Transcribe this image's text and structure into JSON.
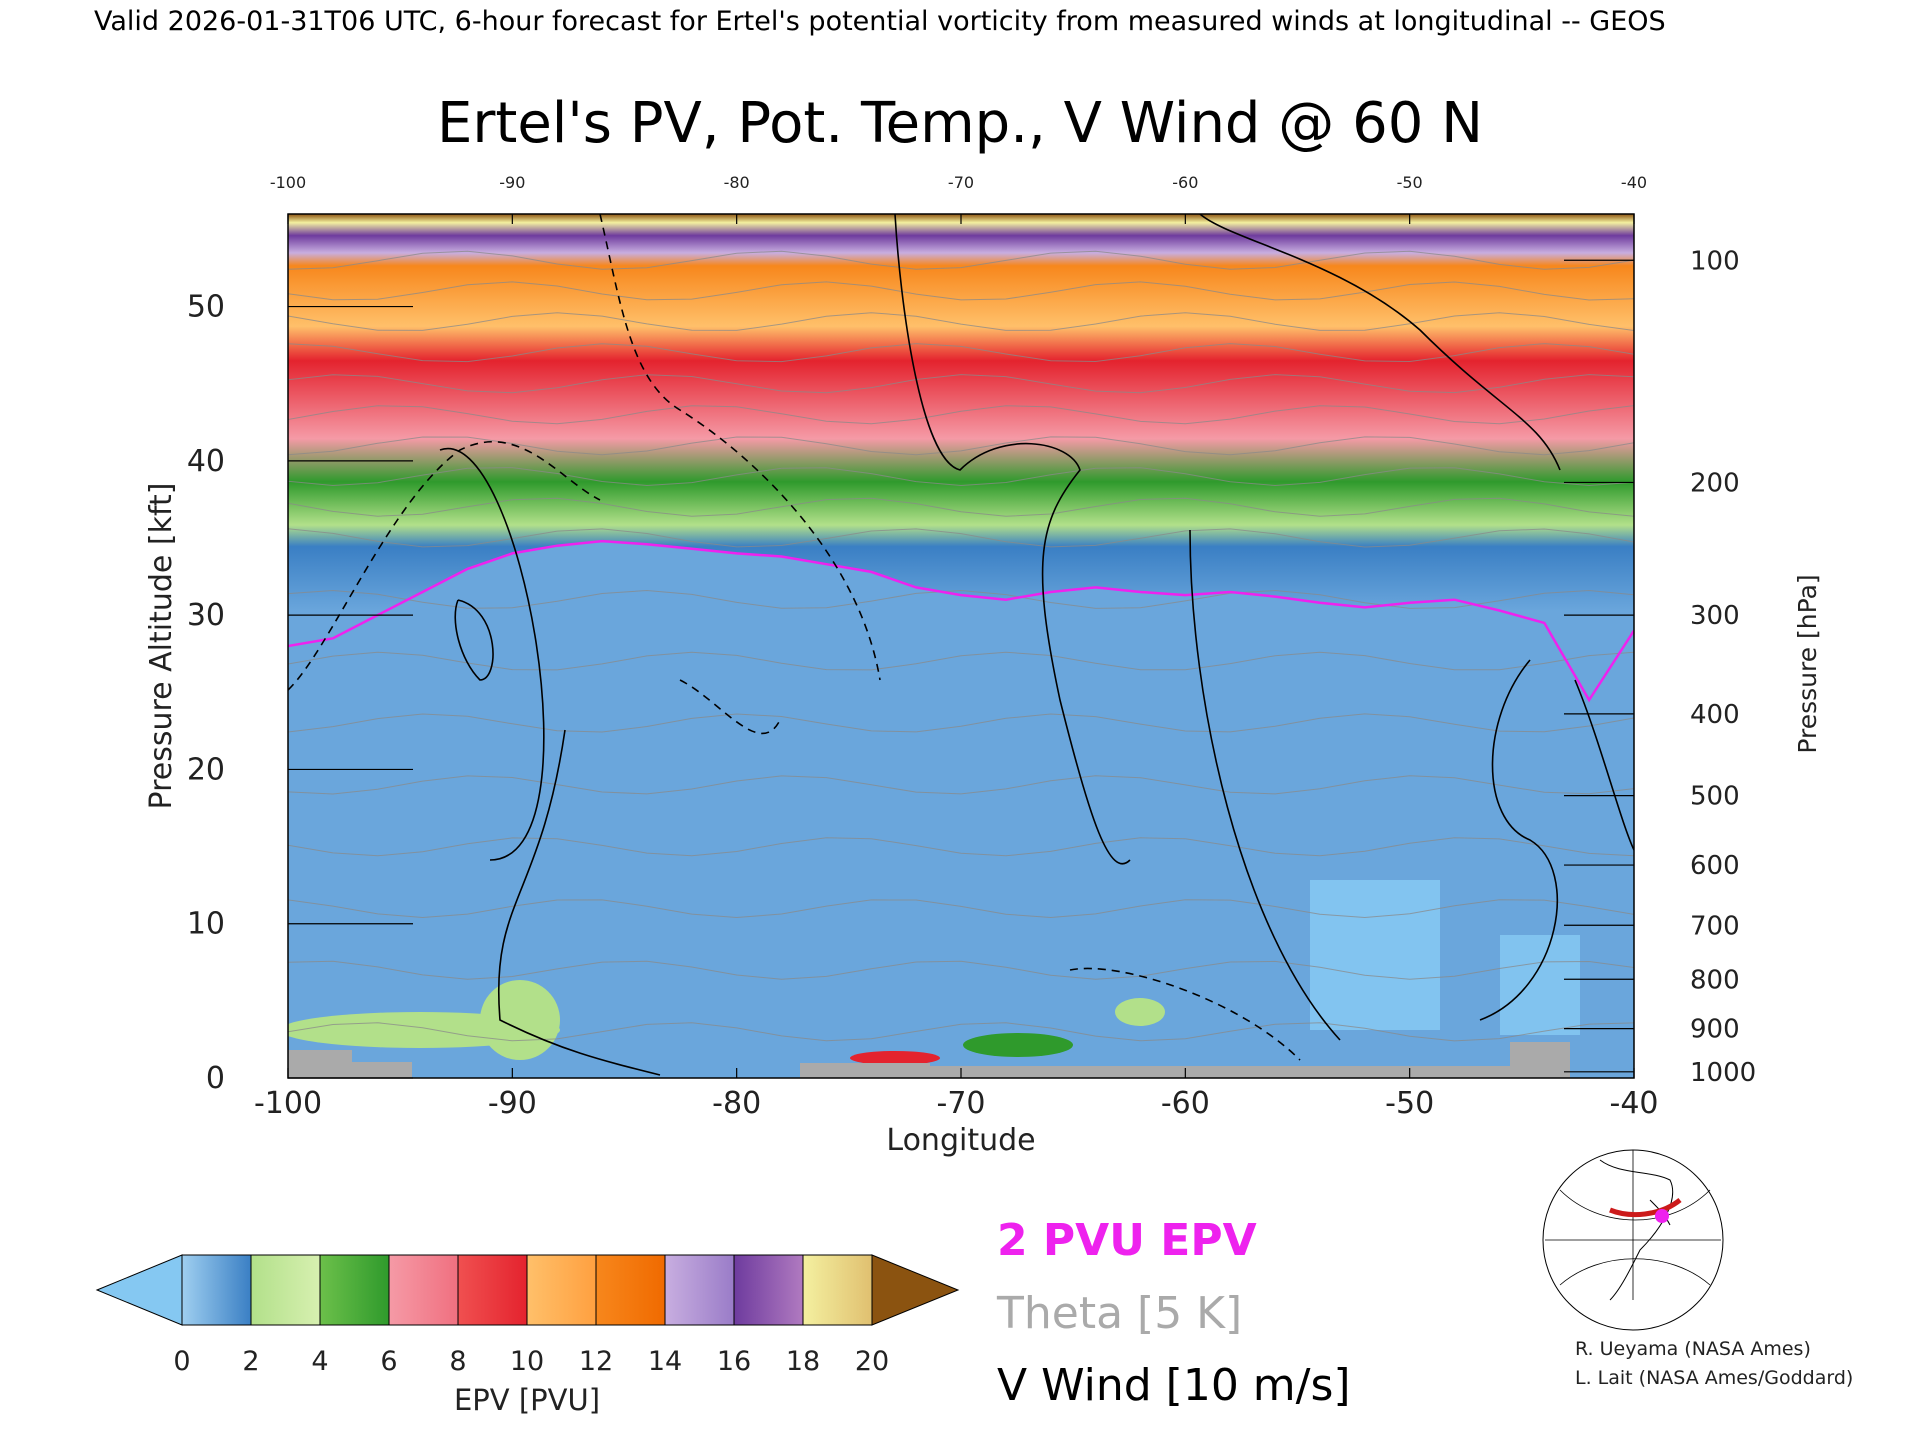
{
  "header_text": "Valid 2026-01-31T06 UTC, 6-hour forecast for Ertel's potential vorticity from measured winds at longitudinal -- GEOS",
  "chart_data": {
    "type": "heatmap",
    "title": "Ertel's PV, Pot. Temp., V Wind @ 60 N",
    "xlabel": "Longitude",
    "ylabel": "Pressure Altitude [kft]",
    "ylabel_right": "Pressure [hPa]",
    "xlim": [
      -100,
      -40
    ],
    "ylim": [
      0,
      56
    ],
    "x_ticks": [
      "-100",
      "-90",
      "-80",
      "-70",
      "-60",
      "-50",
      "-40"
    ],
    "y_ticks": [
      "0",
      "10",
      "20",
      "30",
      "40",
      "50"
    ],
    "pressure_ticks": [
      {
        "label": "100",
        "kft": 53
      },
      {
        "label": "200",
        "kft": 38.6
      },
      {
        "label": "300",
        "kft": 30
      },
      {
        "label": "400",
        "kft": 23.6
      },
      {
        "label": "500",
        "kft": 18.3
      },
      {
        "label": "600",
        "kft": 13.8
      },
      {
        "label": "700",
        "kft": 9.9
      },
      {
        "label": "800",
        "kft": 6.4
      },
      {
        "label": "900",
        "kft": 3.2
      },
      {
        "label": "1000",
        "kft": 0.4
      }
    ],
    "tropopause_2pvu_kft": {
      "lon": [
        -100,
        -98,
        -96,
        -94,
        -92,
        -90,
        -88,
        -86,
        -84,
        -82,
        -80,
        -78,
        -76,
        -74,
        -72,
        -70,
        -68,
        -66,
        -64,
        -62,
        -60,
        -58,
        -56,
        -54,
        -52,
        -50,
        -48,
        -46,
        -44,
        -42,
        -40
      ],
      "kft": [
        28,
        28.5,
        30,
        31.5,
        33,
        34,
        34.5,
        34.8,
        34.6,
        34.3,
        34,
        33.8,
        33.3,
        32.8,
        31.8,
        31.3,
        31,
        31.5,
        31.8,
        31.5,
        31.3,
        31.5,
        31.2,
        30.8,
        30.5,
        30.8,
        31,
        30.3,
        29.5,
        24.5,
        29
      ]
    },
    "colorbar": {
      "label": "EPV [PVU]",
      "ticks": [
        "0",
        "2",
        "4",
        "6",
        "8",
        "10",
        "12",
        "14",
        "16",
        "18",
        "20"
      ],
      "colors": [
        "#9fcff0",
        "#3a7fc4",
        "#b2e08a",
        "#2f9a2c",
        "#f59aa6",
        "#e4232e",
        "#ffc06a",
        "#f7871c",
        "#c8aee0",
        "#6e3b9e",
        "#f4f0a0"
      ],
      "under_color": "#85c8f2",
      "over_color": "#8b5310"
    },
    "legend": [
      {
        "label": "2 PVU EPV",
        "color": "#ee22ee"
      },
      {
        "label": "Theta [5 K]",
        "color": "#aaaaaa"
      },
      {
        "label": "V Wind [10 m/s]",
        "color": "#000000"
      }
    ]
  },
  "credits": [
    "R. Ueyama (NASA Ames)",
    "L. Lait (NASA Ames/Goddard)"
  ]
}
